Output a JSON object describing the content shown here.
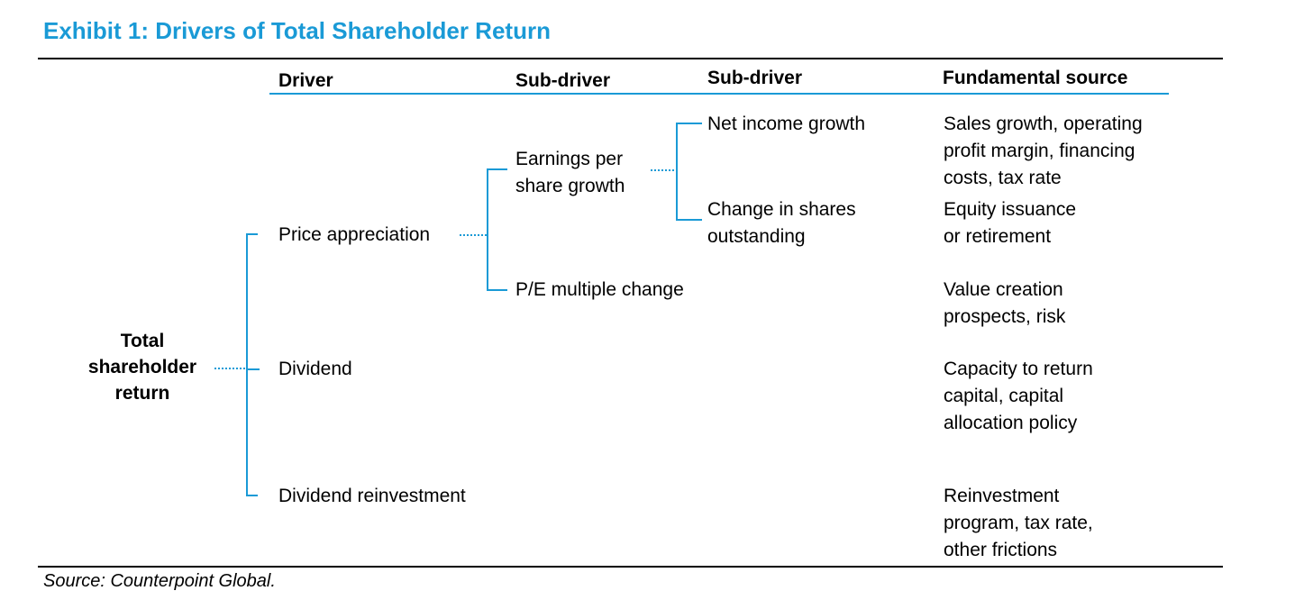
{
  "title": "Exhibit 1: Drivers of Total Shareholder Return",
  "column_headers": {
    "driver": "Driver",
    "sub_driver_1": "Sub-driver",
    "sub_driver_2": "Sub-driver",
    "fundamental_source": "Fundamental source"
  },
  "root": [
    "Total",
    "shareholder",
    "return"
  ],
  "drivers": {
    "price_appreciation": "Price appreciation",
    "dividend": "Dividend",
    "dividend_reinvestment": "Dividend reinvestment"
  },
  "sub_drivers": {
    "eps_growth": [
      "Earnings per",
      "share growth"
    ],
    "pe_change": "P/E multiple change"
  },
  "sub_sub_drivers": {
    "net_income_growth": "Net income growth",
    "shares_outstanding": [
      "Change in shares",
      "outstanding"
    ]
  },
  "fundamental_sources": {
    "net_income_growth": [
      "Sales growth, operating",
      "profit margin, financing",
      "costs, tax rate"
    ],
    "shares_outstanding": [
      "Equity issuance",
      "or retirement"
    ],
    "pe_change": [
      "Value creation",
      "prospects, risk"
    ],
    "dividend": [
      "Capacity to return",
      "capital, capital",
      "allocation policy"
    ],
    "dividend_reinvestment": [
      "Reinvestment",
      "program, tax rate,",
      "other frictions"
    ]
  },
  "source_note": "Source: Counterpoint Global.",
  "colors": {
    "accent": "#1a9ad6",
    "text": "#000000",
    "rule": "#000000"
  }
}
